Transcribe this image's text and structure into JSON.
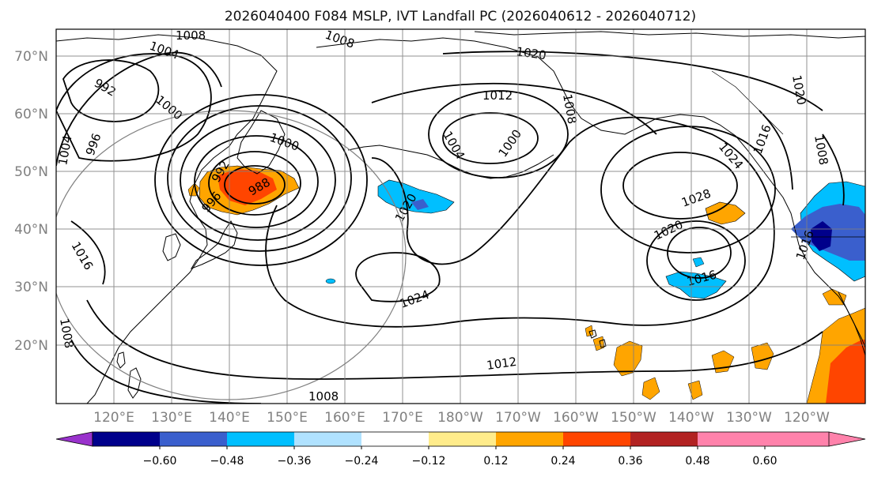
{
  "title": "2026040400 F084 MSLP, IVT Landfall PC (2026040612 - 2026040712)",
  "map": {
    "lat_labels": [
      "70°N",
      "60°N",
      "50°N",
      "40°N",
      "30°N",
      "20°N"
    ],
    "lon_labels": [
      "120°E",
      "130°E",
      "140°E",
      "150°E",
      "160°E",
      "170°E",
      "180°W",
      "170°W",
      "160°W",
      "150°W",
      "140°W",
      "130°W",
      "120°W"
    ],
    "contour_labels": [
      "1008",
      "1008",
      "1004",
      "992",
      "1000",
      "1004",
      "996",
      "992",
      "996",
      "988",
      "1000",
      "1012",
      "1020",
      "1004",
      "1000",
      "1008",
      "1020",
      "1024",
      "1012",
      "1008",
      "1028",
      "1024",
      "1020",
      "1016",
      "1016",
      "1020",
      "1016",
      "1016",
      "1008",
      "1008"
    ],
    "colors": {
      "contour": "#000000",
      "coast": "#000000",
      "grid": "#7f7f7f",
      "circle": "#808080",
      "tick_label": "#808080"
    }
  },
  "colorbar": {
    "tick_labels": [
      "−0.60",
      "−0.48",
      "−0.36",
      "−0.24",
      "−0.12",
      "0.12",
      "0.24",
      "0.36",
      "0.48",
      "0.60"
    ],
    "colors": [
      "#9932cc",
      "#00008b",
      "#3a5fcd",
      "#00bfff",
      "#b0e2ff",
      "#ffffff",
      "#ffec8b",
      "#ffa500",
      "#ff4500",
      "#b22222",
      "#ff82ab"
    ],
    "value_range": [
      -0.72,
      0.72
    ]
  }
}
